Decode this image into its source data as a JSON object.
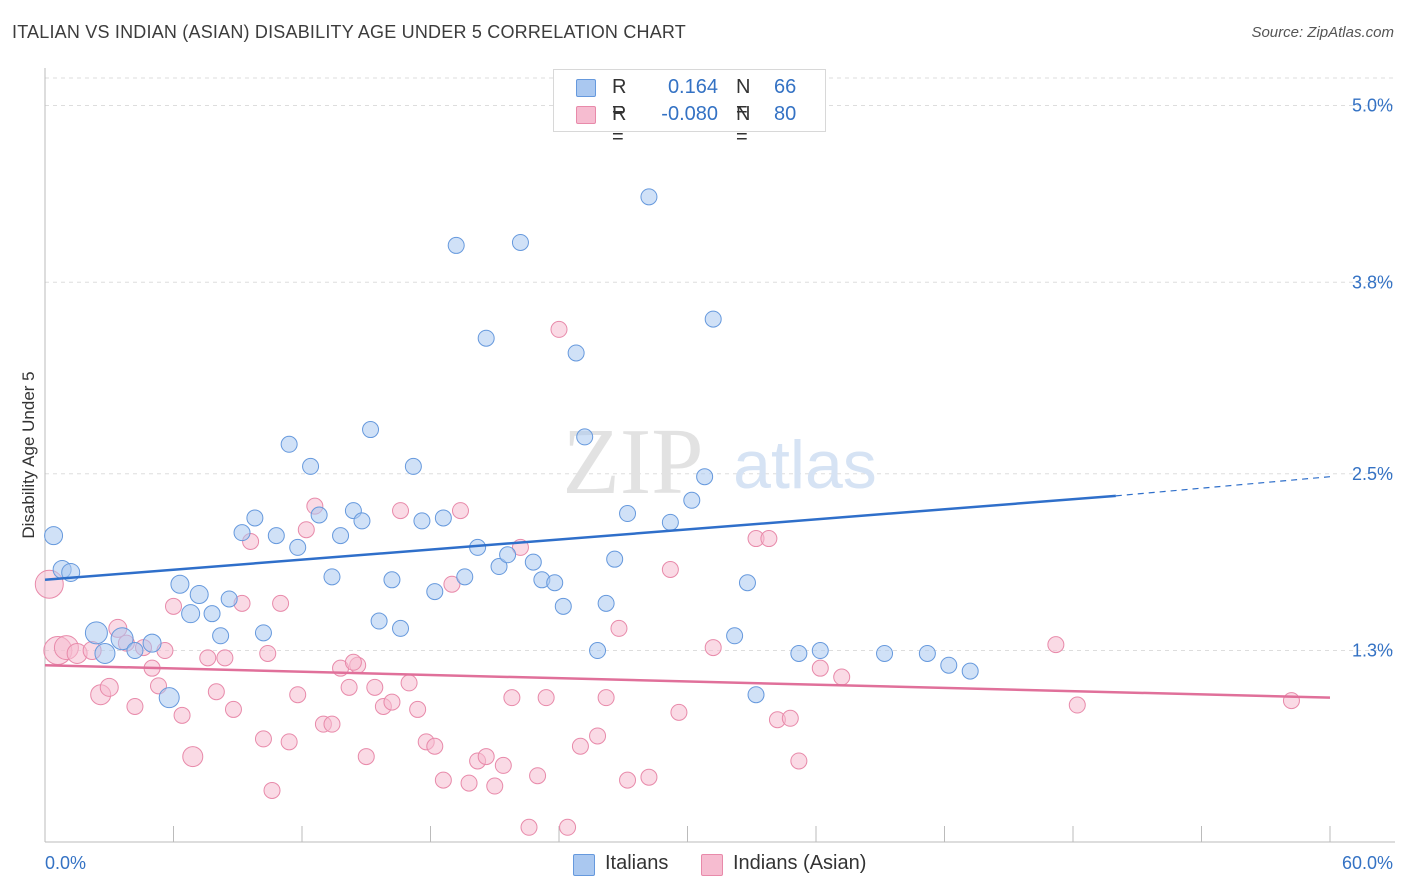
{
  "title": "ITALIAN VS INDIAN (ASIAN) DISABILITY AGE UNDER 5 CORRELATION CHART",
  "source": "Source: ZipAtlas.com",
  "watermark": {
    "zip": "ZIP",
    "atlas": "atlas"
  },
  "legend": {
    "r_label": "R =",
    "n_label": "N =",
    "series": [
      {
        "name": "Italians",
        "r": "0.164",
        "n": "66"
      },
      {
        "name": "Indians (Asian)",
        "r": "-0.080",
        "n": "80"
      }
    ]
  },
  "colors": {
    "italians_fill": "#aac8f0",
    "italians_stroke": "#6699dd",
    "italians_line": "#2f6fca",
    "indians_fill": "#f6bcd0",
    "indians_stroke": "#e88aaa",
    "indians_line": "#e0709a",
    "axis_text": "#3472c4",
    "grid": "#dddddd"
  },
  "chart_data": {
    "type": "scatter",
    "title": "ITALIAN VS INDIAN (ASIAN) DISABILITY AGE UNDER 5 CORRELATION CHART",
    "xlabel": "",
    "ylabel": "Disability Age Under 5",
    "xlim": [
      0,
      60
    ],
    "ylim": [
      0,
      5.2
    ],
    "x_tick_labels": [
      {
        "value": 0,
        "label": "0.0%"
      },
      {
        "value": 60,
        "label": "60.0%"
      }
    ],
    "y_ticks": [
      {
        "value": 1.3,
        "label": "1.3%"
      },
      {
        "value": 2.5,
        "label": "2.5%"
      },
      {
        "value": 3.8,
        "label": "3.8%"
      },
      {
        "value": 5.0,
        "label": "5.0%"
      }
    ],
    "series": [
      {
        "name": "Italians",
        "r": 0.164,
        "n": 66,
        "trend": {
          "x0": 0,
          "y0": 1.78,
          "x1": 50,
          "y1": 2.35,
          "dash_to_x": 60,
          "dash_to_y": 2.48
        },
        "points": [
          [
            0.4,
            2.08,
            9
          ],
          [
            0.8,
            1.85,
            9
          ],
          [
            1.2,
            1.83,
            9
          ],
          [
            2.4,
            1.42,
            11
          ],
          [
            2.8,
            1.28,
            10
          ],
          [
            3.6,
            1.38,
            11
          ],
          [
            4.2,
            1.3,
            8
          ],
          [
            5.0,
            1.35,
            9
          ],
          [
            5.8,
            0.98,
            10
          ],
          [
            6.3,
            1.75,
            9
          ],
          [
            6.8,
            1.55,
            9
          ],
          [
            7.2,
            1.68,
            9
          ],
          [
            7.8,
            1.55,
            8
          ],
          [
            8.2,
            1.4,
            8
          ],
          [
            8.6,
            1.65,
            8
          ],
          [
            9.2,
            2.1,
            8
          ],
          [
            9.8,
            2.2,
            8
          ],
          [
            10.2,
            1.42,
            8
          ],
          [
            10.8,
            2.08,
            8
          ],
          [
            11.4,
            2.7,
            8
          ],
          [
            11.8,
            2.0,
            8
          ],
          [
            12.4,
            2.55,
            8
          ],
          [
            12.8,
            2.22,
            8
          ],
          [
            13.4,
            1.8,
            8
          ],
          [
            13.8,
            2.08,
            8
          ],
          [
            14.4,
            2.25,
            8
          ],
          [
            14.8,
            2.18,
            8
          ],
          [
            15.2,
            2.8,
            8
          ],
          [
            15.6,
            1.5,
            8
          ],
          [
            16.2,
            1.78,
            8
          ],
          [
            16.6,
            1.45,
            8
          ],
          [
            17.2,
            2.55,
            8
          ],
          [
            17.6,
            2.18,
            8
          ],
          [
            18.2,
            1.7,
            8
          ],
          [
            18.6,
            2.2,
            8
          ],
          [
            19.2,
            4.05,
            8
          ],
          [
            19.6,
            1.8,
            8
          ],
          [
            20.2,
            2.0,
            8
          ],
          [
            20.6,
            3.42,
            8
          ],
          [
            21.2,
            1.87,
            8
          ],
          [
            21.6,
            1.95,
            8
          ],
          [
            22.2,
            4.07,
            8
          ],
          [
            22.8,
            1.9,
            8
          ],
          [
            23.2,
            1.78,
            8
          ],
          [
            23.8,
            1.76,
            8
          ],
          [
            24.2,
            1.6,
            8
          ],
          [
            24.8,
            3.32,
            8
          ],
          [
            25.2,
            2.75,
            8
          ],
          [
            25.8,
            1.3,
            8
          ],
          [
            26.2,
            1.62,
            8
          ],
          [
            26.6,
            1.92,
            8
          ],
          [
            27.2,
            2.23,
            8
          ],
          [
            28.2,
            4.38,
            8
          ],
          [
            29.2,
            2.17,
            8
          ],
          [
            30.2,
            2.32,
            8
          ],
          [
            30.8,
            2.48,
            8
          ],
          [
            31.2,
            3.55,
            8
          ],
          [
            32.2,
            1.4,
            8
          ],
          [
            32.8,
            1.76,
            8
          ],
          [
            33.2,
            1.0,
            8
          ],
          [
            35.2,
            1.28,
            8
          ],
          [
            36.2,
            1.3,
            8
          ],
          [
            39.2,
            1.28,
            8
          ],
          [
            41.2,
            1.28,
            8
          ],
          [
            42.2,
            1.2,
            8
          ],
          [
            43.2,
            1.16,
            8
          ]
        ]
      },
      {
        "name": "Indians (Asian)",
        "r": -0.08,
        "n": 80,
        "trend": {
          "x0": 0,
          "y0": 1.2,
          "x1": 60,
          "y1": 0.98
        },
        "points": [
          [
            0.2,
            1.75,
            14
          ],
          [
            0.6,
            1.3,
            14
          ],
          [
            1.0,
            1.32,
            12
          ],
          [
            1.5,
            1.28,
            10
          ],
          [
            2.2,
            1.3,
            9
          ],
          [
            2.6,
            1.0,
            10
          ],
          [
            3.0,
            1.05,
            9
          ],
          [
            3.4,
            1.45,
            9
          ],
          [
            3.8,
            1.35,
            8
          ],
          [
            4.2,
            0.92,
            8
          ],
          [
            4.6,
            1.32,
            8
          ],
          [
            5.0,
            1.18,
            8
          ],
          [
            5.3,
            1.06,
            8
          ],
          [
            5.6,
            1.3,
            8
          ],
          [
            6.0,
            1.6,
            8
          ],
          [
            6.4,
            0.86,
            8
          ],
          [
            6.9,
            0.58,
            10
          ],
          [
            7.6,
            1.25,
            8
          ],
          [
            8.0,
            1.02,
            8
          ],
          [
            8.4,
            1.25,
            8
          ],
          [
            8.8,
            0.9,
            8
          ],
          [
            9.2,
            1.62,
            8
          ],
          [
            9.6,
            2.04,
            8
          ],
          [
            10.2,
            0.7,
            8
          ],
          [
            10.6,
            0.35,
            8
          ],
          [
            11.0,
            1.62,
            8
          ],
          [
            11.4,
            0.68,
            8
          ],
          [
            11.8,
            1.0,
            8
          ],
          [
            12.2,
            2.12,
            8
          ],
          [
            12.6,
            2.28,
            8
          ],
          [
            13.0,
            0.8,
            8
          ],
          [
            13.4,
            0.8,
            8
          ],
          [
            13.8,
            1.18,
            8
          ],
          [
            14.2,
            1.05,
            8
          ],
          [
            14.6,
            1.2,
            8
          ],
          [
            15.0,
            0.58,
            8
          ],
          [
            15.4,
            1.05,
            8
          ],
          [
            15.8,
            0.92,
            8
          ],
          [
            16.2,
            0.95,
            8
          ],
          [
            16.6,
            2.25,
            8
          ],
          [
            17.0,
            1.08,
            8
          ],
          [
            17.4,
            0.9,
            8
          ],
          [
            17.8,
            0.68,
            8
          ],
          [
            18.2,
            0.65,
            8
          ],
          [
            18.6,
            0.42,
            8
          ],
          [
            19.0,
            1.75,
            8
          ],
          [
            19.4,
            2.25,
            8
          ],
          [
            19.8,
            0.4,
            8
          ],
          [
            20.2,
            0.55,
            8
          ],
          [
            20.6,
            0.58,
            8
          ],
          [
            21.0,
            0.38,
            8
          ],
          [
            21.4,
            0.52,
            8
          ],
          [
            21.8,
            0.98,
            8
          ],
          [
            22.2,
            2.0,
            8
          ],
          [
            22.6,
            0.1,
            8
          ],
          [
            23.0,
            0.45,
            8
          ],
          [
            23.4,
            0.98,
            8
          ],
          [
            24.0,
            3.48,
            8
          ],
          [
            24.4,
            0.1,
            8
          ],
          [
            25.0,
            0.65,
            8
          ],
          [
            25.8,
            0.72,
            8
          ],
          [
            26.2,
            0.98,
            8
          ],
          [
            26.8,
            1.45,
            8
          ],
          [
            27.2,
            0.42,
            8
          ],
          [
            28.2,
            0.44,
            8
          ],
          [
            29.2,
            1.85,
            8
          ],
          [
            29.6,
            0.88,
            8
          ],
          [
            31.2,
            1.32,
            8
          ],
          [
            33.2,
            2.06,
            8
          ],
          [
            33.8,
            2.06,
            8
          ],
          [
            34.2,
            0.83,
            8
          ],
          [
            34.8,
            0.84,
            8
          ],
          [
            35.2,
            0.55,
            8
          ],
          [
            36.2,
            1.18,
            8
          ],
          [
            37.2,
            1.12,
            8
          ],
          [
            47.2,
            1.34,
            8
          ],
          [
            48.2,
            0.93,
            8
          ],
          [
            58.2,
            0.96,
            8
          ],
          [
            10.4,
            1.28,
            8
          ],
          [
            14.4,
            1.22,
            8
          ]
        ]
      }
    ]
  }
}
